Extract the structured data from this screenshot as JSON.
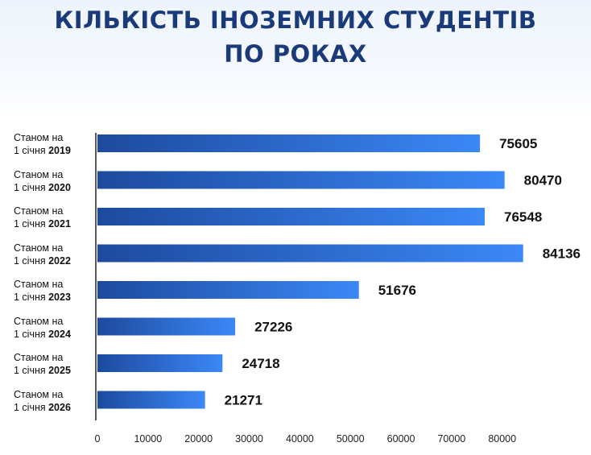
{
  "chart_data": {
    "type": "bar",
    "orientation": "horizontal",
    "title_lines": [
      "КІЛЬКІСТЬ ІНОЗЕМНИХ СТУДЕНТІВ",
      "ПО РОКАХ"
    ],
    "categories": [
      {
        "prefix": "Станом на",
        "date": "1 січня",
        "year": "2019"
      },
      {
        "prefix": "Станом на",
        "date": "1 січня",
        "year": "2020"
      },
      {
        "prefix": "Станом на",
        "date": "1 січня",
        "year": "2021"
      },
      {
        "prefix": "Станом на",
        "date": "1 січня",
        "year": "2022"
      },
      {
        "prefix": "Станом на",
        "date": "1 січня",
        "year": "2023"
      },
      {
        "prefix": "Станом на",
        "date": "1 січня",
        "year": "2024"
      },
      {
        "prefix": "Станом на",
        "date": "1 січня",
        "year": "2025"
      },
      {
        "prefix": "Станом на",
        "date": "1 січня",
        "year": "2026"
      }
    ],
    "values": [
      75605,
      80470,
      76548,
      84136,
      51676,
      27226,
      24718,
      21271
    ],
    "x_ticks": [
      0,
      10000,
      20000,
      30000,
      40000,
      50000,
      60000,
      70000,
      80000
    ],
    "xlim": [
      0,
      85000
    ],
    "grid": false,
    "legend": "none",
    "colors": {
      "bar_start": "#1d4a9e",
      "bar_end": "#3b88f7",
      "title": "#1a3a7a",
      "axis": "#222222"
    }
  }
}
